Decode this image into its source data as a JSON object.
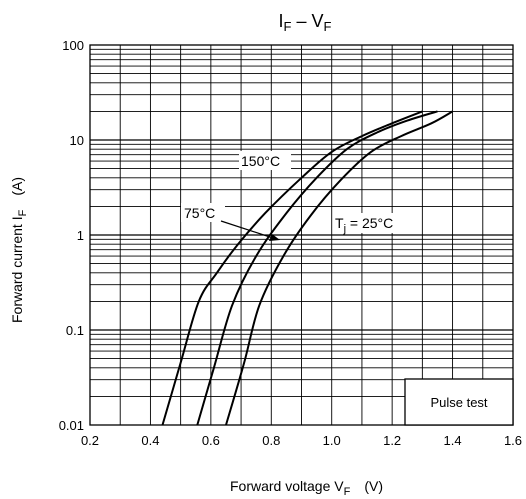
{
  "chart_data": {
    "type": "line",
    "title": {
      "main": "I",
      "sub1": "F",
      "dash": " – V",
      "sub2": "F"
    },
    "xlabel": {
      "text": "Forward voltage   V",
      "sub": "F",
      "unit": "(V)"
    },
    "ylabel": {
      "text": "Forward current   I",
      "sub": "F",
      "unit": "(A)"
    },
    "x_ticks": [
      "0.2",
      "0.4",
      "0.6",
      "0.8",
      "1.0",
      "1.2",
      "1.4",
      "1.6"
    ],
    "y_ticks": [
      "0.01",
      "0.1",
      "1",
      "10",
      "100"
    ],
    "xlim": [
      0.2,
      1.6
    ],
    "ylim": [
      0.01,
      100
    ],
    "yscale": "log",
    "grid": true,
    "series": [
      {
        "name": "150°C",
        "x": [
          0.44,
          0.5,
          0.56,
          0.62,
          0.69,
          0.78,
          0.9,
          1.0,
          1.1,
          1.2,
          1.3
        ],
        "y": [
          0.01,
          0.045,
          0.2,
          0.4,
          0.8,
          1.7,
          4,
          7.5,
          11,
          15,
          20
        ]
      },
      {
        "name": "75°C",
        "x": [
          0.555,
          0.61,
          0.67,
          0.75,
          0.85,
          0.95,
          1.05,
          1.15,
          1.25,
          1.35
        ],
        "y": [
          0.01,
          0.04,
          0.18,
          0.6,
          1.7,
          4,
          8,
          12,
          16,
          20
        ]
      },
      {
        "name": "Tj = 25°C",
        "x": [
          0.65,
          0.71,
          0.76,
          0.84,
          0.93,
          1.03,
          1.13,
          1.23,
          1.33,
          1.4
        ],
        "y": [
          0.01,
          0.045,
          0.18,
          0.6,
          1.6,
          3.8,
          7.5,
          11,
          15,
          20
        ]
      }
    ],
    "annotations": {
      "label_150": "150°C",
      "label_75": "75°C",
      "label_tj": {
        "t": "T",
        "j": "j",
        "rest": " = 25°C"
      },
      "box": "Pulse test"
    }
  }
}
